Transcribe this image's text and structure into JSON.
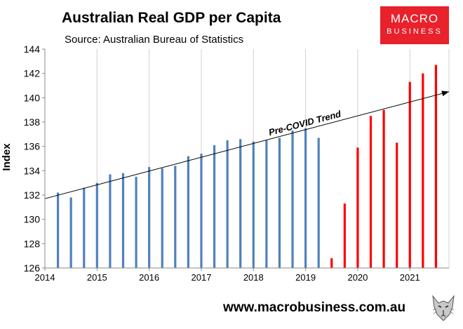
{
  "header": {
    "title": "Australian Real GDP per Capita",
    "subtitle": "Source: Australian Bureau of Statistics"
  },
  "logo": {
    "line1": "MACRO",
    "line2": "BUSINESS",
    "color": "#e8212b"
  },
  "footer": {
    "url": "www.macrobusiness.com.au",
    "mascot_icon": "wolf-face-icon"
  },
  "chart_data": {
    "type": "bar",
    "title": "Australian Real GDP per Capita",
    "subtitle": "Source: Australian Bureau of Statistics",
    "xlabel": "",
    "ylabel": "Index",
    "xlim": [
      2014,
      2021.75
    ],
    "ylim": [
      126,
      144
    ],
    "x_ticks": [
      2014,
      2015,
      2016,
      2017,
      2018,
      2019,
      2020,
      2021
    ],
    "y_ticks": [
      126,
      128,
      130,
      132,
      134,
      136,
      138,
      140,
      142,
      144
    ],
    "grid": "vertical",
    "series": [
      {
        "color": "#4f81bd",
        "x": [
          2014.25,
          2014.5,
          2014.75,
          2015.0,
          2015.25,
          2015.5,
          2015.75,
          2016.0,
          2016.25,
          2016.5,
          2016.75,
          2017.0,
          2017.25,
          2017.5,
          2017.75,
          2018.0,
          2018.25,
          2018.5,
          2018.75,
          2019.0,
          2019.25
        ],
        "values": [
          132.2,
          131.8,
          132.6,
          133.0,
          133.7,
          133.8,
          133.5,
          134.3,
          134.2,
          134.4,
          135.2,
          135.4,
          136.1,
          136.5,
          136.6,
          136.4,
          136.5,
          136.7,
          137.3,
          137.5,
          136.7
        ]
      },
      {
        "color": "#ff0000",
        "x": [
          2019.5,
          2019.75,
          2020.0,
          2020.25,
          2020.5,
          2020.75,
          2021.0,
          2021.25,
          2021.5
        ],
        "values": [
          126.8,
          131.3,
          135.9,
          138.5,
          139.0,
          136.3,
          141.3,
          142.0,
          142.7
        ]
      }
    ],
    "trend": {
      "label": "Pre-COVID Trend",
      "x": [
        2014.0,
        2021.75
      ],
      "values": [
        131.7,
        140.5
      ]
    }
  }
}
